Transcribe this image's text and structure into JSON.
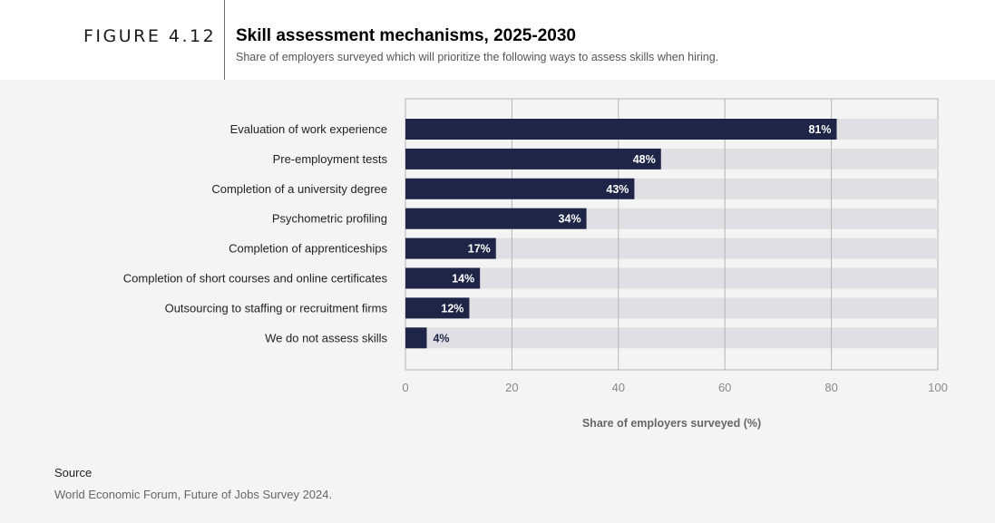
{
  "figure_label": "FIGURE 4.12",
  "title": "Skill assessment mechanisms, 2025-2030",
  "subtitle": "Share of employers surveyed which will prioritize the following ways to assess skills when hiring.",
  "colors": {
    "bar": "#1f2547",
    "track": "#dfdfe4",
    "panel": "#f4f4f4",
    "grid": "#b5b5b5"
  },
  "chart_data": {
    "type": "bar",
    "orientation": "horizontal",
    "categories": [
      "Evaluation of work experience",
      "Pre-employment tests",
      "Completion of a university degree",
      "Psychometric profiling",
      "Completion of apprenticeships",
      "Completion of short courses and online certificates",
      "Outsourcing to staffing or recruitment firms",
      "We do not assess skills"
    ],
    "values": [
      81,
      48,
      43,
      34,
      17,
      14,
      12,
      4
    ],
    "value_labels": [
      "81%",
      "48%",
      "43%",
      "34%",
      "17%",
      "14%",
      "12%",
      "4%"
    ],
    "xlim": [
      0,
      100
    ],
    "xticks": [
      0,
      20,
      40,
      60,
      80,
      100
    ],
    "xtick_labels": [
      "0",
      "20",
      "40",
      "60",
      "80",
      "100"
    ],
    "xlabel": "Share of employers surveyed (%)",
    "grid": true
  },
  "source": {
    "heading": "Source",
    "text": "World Economic Forum, Future of Jobs Survey 2024."
  }
}
